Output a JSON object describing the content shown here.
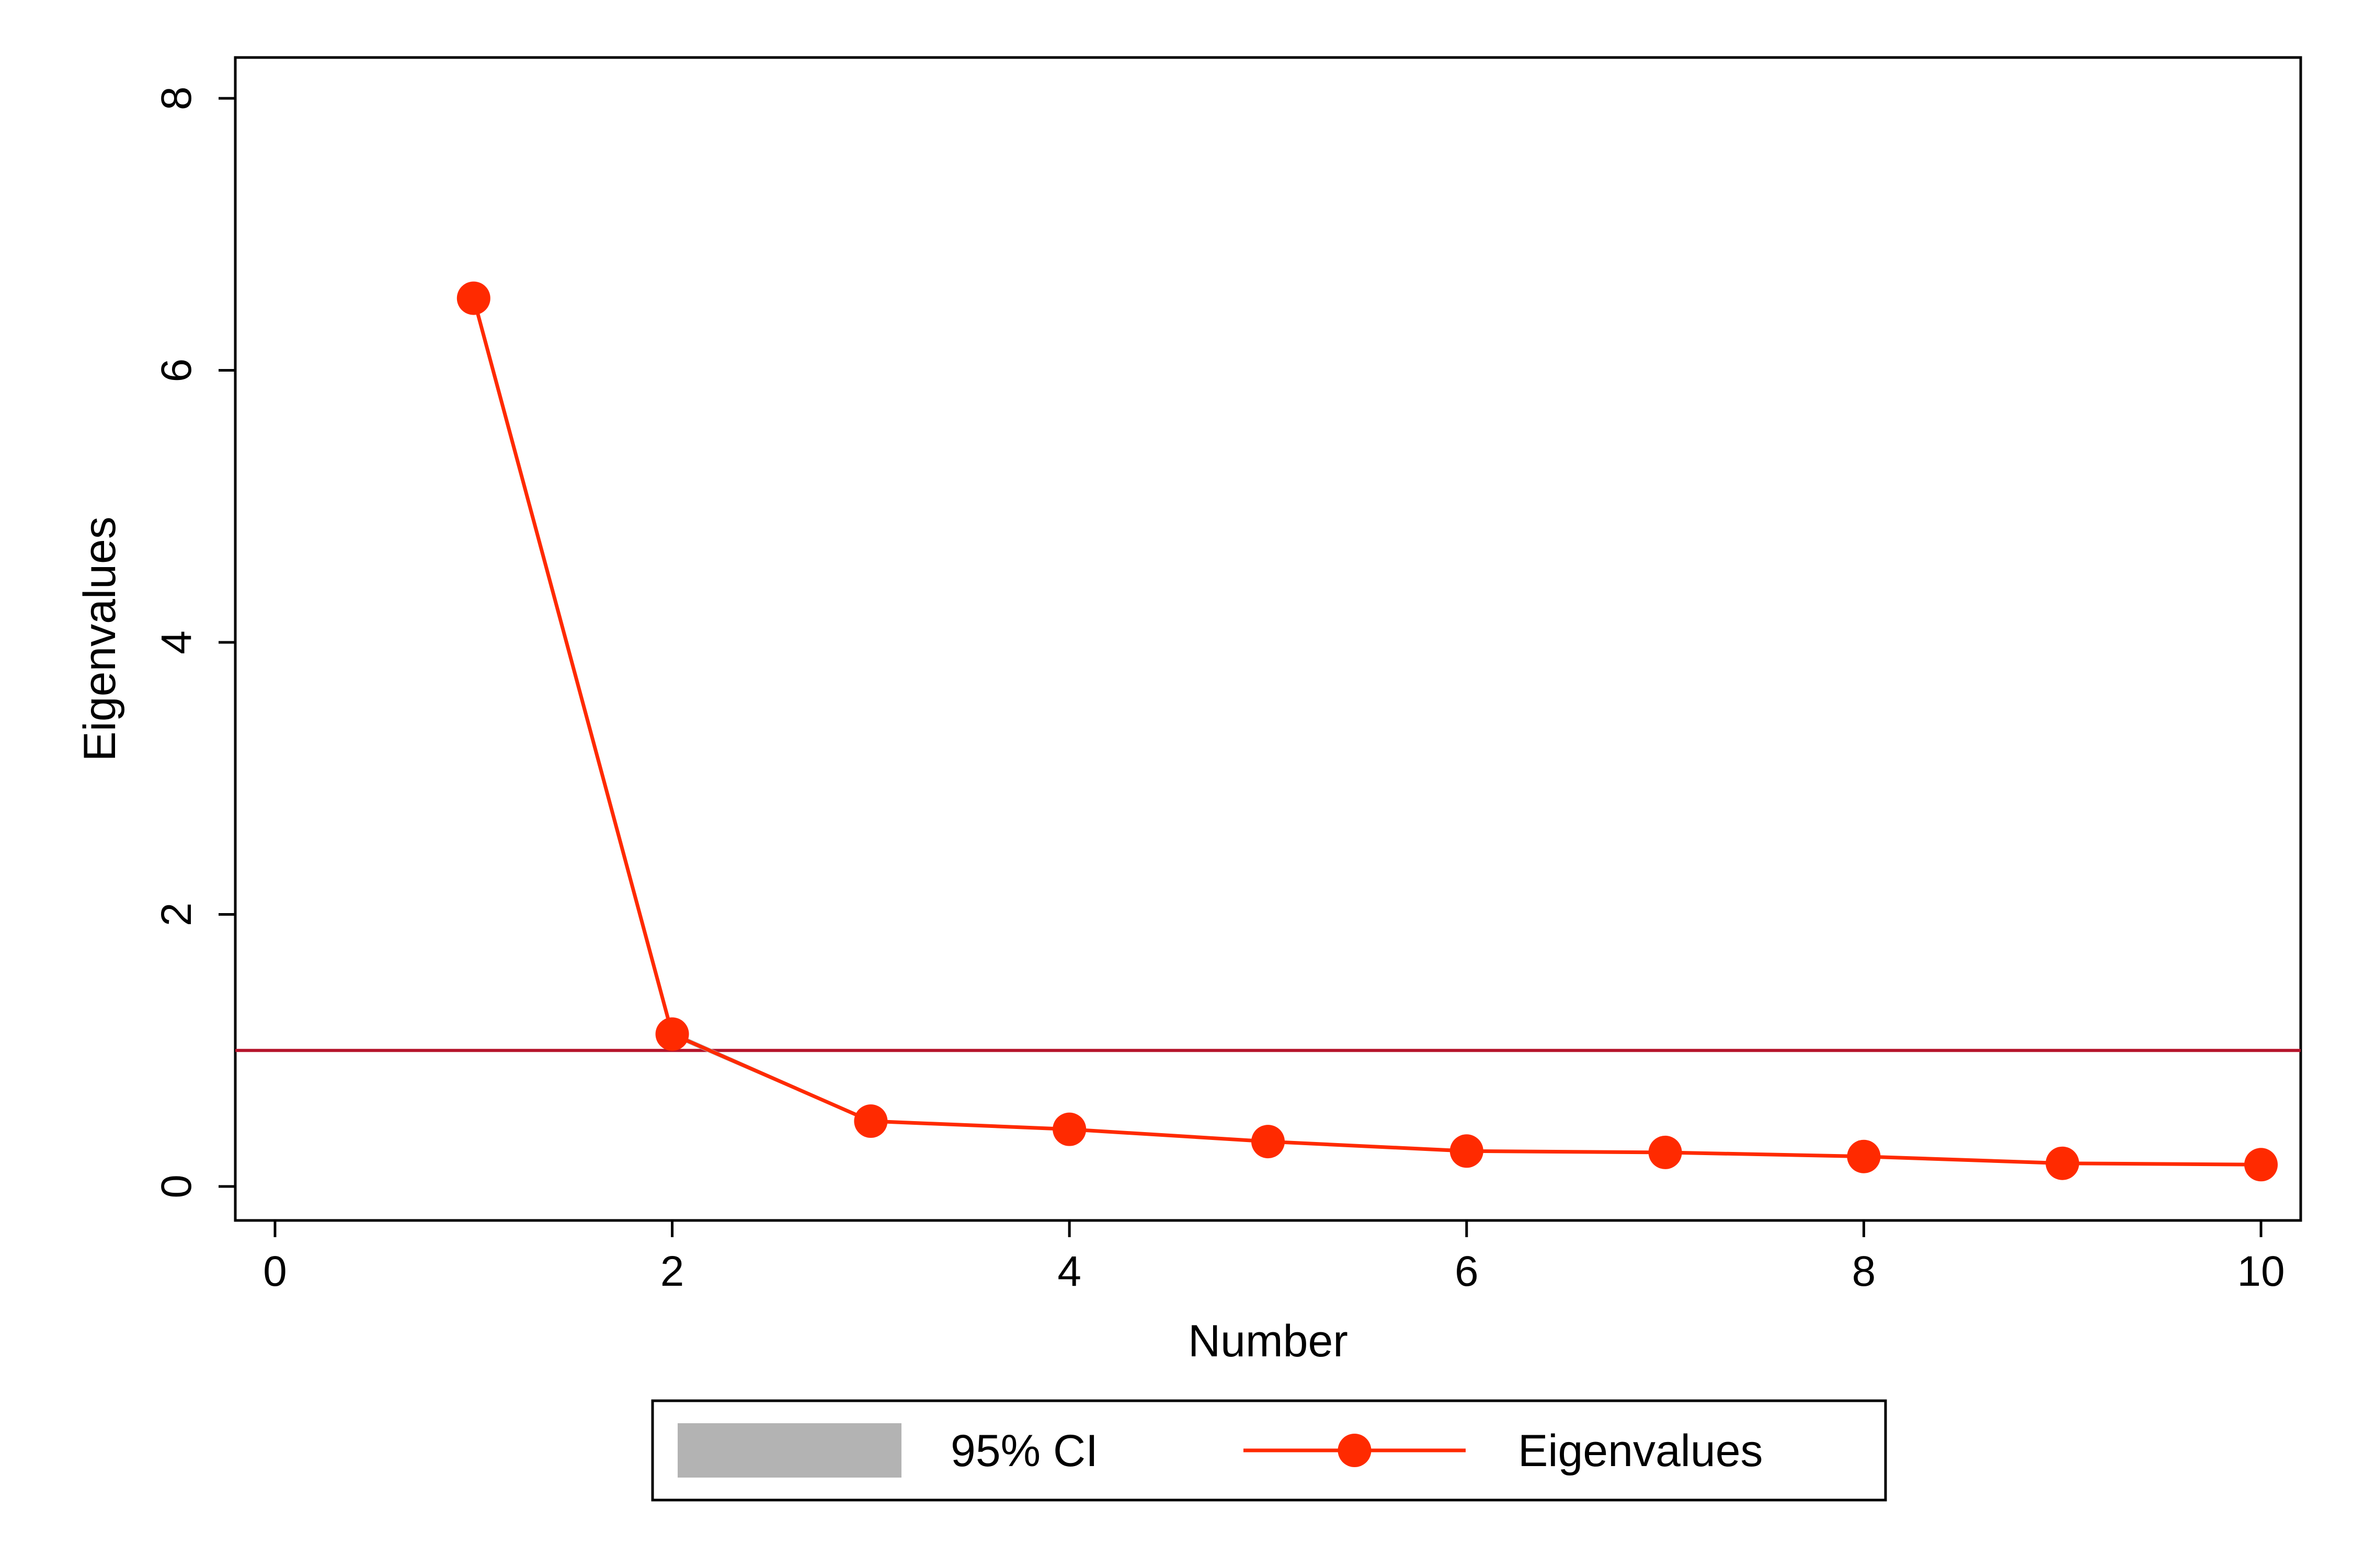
{
  "chart_data": {
    "type": "line",
    "xlabel": "Number",
    "ylabel": "Eigenvalues",
    "xlim": [
      -0.2,
      10.2
    ],
    "ylim": [
      -0.25,
      8.3
    ],
    "xticks": [
      0,
      2,
      4,
      6,
      8,
      10
    ],
    "yticks": [
      0,
      2,
      4,
      6,
      8
    ],
    "grid": false,
    "legend_position": "bottom",
    "reference_line": {
      "y": 1,
      "color": "#b5142c"
    },
    "series": [
      {
        "name": "Eigenvalues",
        "color": "#ff2a00",
        "x": [
          1,
          2,
          3,
          4,
          5,
          6,
          7,
          8,
          9,
          10
        ],
        "y": [
          6.53,
          1.12,
          0.48,
          0.42,
          0.33,
          0.26,
          0.25,
          0.22,
          0.17,
          0.16
        ],
        "ci_lower": [
          6.49,
          1.1,
          0.47,
          0.41,
          0.32,
          0.25,
          0.24,
          0.21,
          0.16,
          0.15
        ],
        "ci_upper": [
          6.57,
          1.14,
          0.49,
          0.43,
          0.34,
          0.27,
          0.26,
          0.23,
          0.18,
          0.17
        ]
      }
    ],
    "legend": [
      {
        "label": "95% CI",
        "kind": "band",
        "color": "#b3b3b3"
      },
      {
        "label": "Eigenvalues",
        "kind": "line-marker",
        "color": "#ff2a00"
      }
    ]
  }
}
